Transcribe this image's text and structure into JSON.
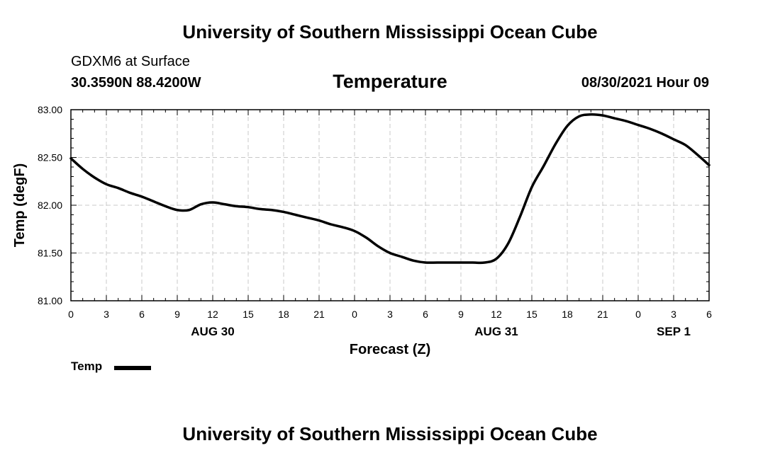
{
  "header": {
    "title": "University of Southern Mississippi Ocean Cube",
    "station": "GDXM6 at Surface",
    "coords": "30.3590N  88.4200W",
    "datetime": "08/30/2021 Hour 09"
  },
  "footer": {
    "title": "University of Southern Mississippi Ocean Cube"
  },
  "legend": {
    "label": "Temp"
  },
  "chart_data": {
    "type": "line",
    "title": "Temperature",
    "xlabel": "Forecast (Z)",
    "ylabel": "Temp (degF)",
    "xlim": [
      0,
      54
    ],
    "ylim": [
      81.0,
      83.0
    ],
    "x_ticks": [
      0,
      3,
      6,
      9,
      12,
      15,
      18,
      21,
      24,
      27,
      30,
      33,
      36,
      39,
      42,
      45,
      48,
      51,
      54
    ],
    "x_tick_labels": [
      "0",
      "3",
      "6",
      "9",
      "12",
      "15",
      "18",
      "21",
      "0",
      "3",
      "6",
      "9",
      "12",
      "15",
      "18",
      "21",
      "0",
      "3",
      "6"
    ],
    "y_ticks": [
      81.0,
      81.5,
      82.0,
      82.5,
      83.0
    ],
    "y_tick_labels": [
      "81.00",
      "81.50",
      "82.00",
      "82.50",
      "83.00"
    ],
    "date_labels": [
      {
        "x": 12,
        "label": "AUG 30"
      },
      {
        "x": 36,
        "label": "AUG 31"
      },
      {
        "x": 51,
        "label": "SEP 1"
      }
    ],
    "grid": true,
    "legend_position": "bottom-left",
    "series": [
      {
        "name": "Temp",
        "color": "#000000",
        "x": [
          0,
          1,
          2,
          3,
          4,
          5,
          6,
          7,
          8,
          9,
          10,
          11,
          12,
          13,
          14,
          15,
          16,
          17,
          18,
          19,
          20,
          21,
          22,
          23,
          24,
          25,
          26,
          27,
          28,
          29,
          30,
          31,
          32,
          33,
          34,
          35,
          36,
          37,
          38,
          39,
          40,
          41,
          42,
          43,
          44,
          45,
          46,
          47,
          48,
          49,
          50,
          51,
          52,
          53,
          54
        ],
        "values": [
          82.49,
          82.38,
          82.29,
          82.22,
          82.18,
          82.13,
          82.09,
          82.04,
          81.99,
          81.95,
          81.95,
          82.01,
          82.03,
          82.01,
          81.99,
          81.98,
          81.96,
          81.95,
          81.93,
          81.9,
          81.87,
          81.84,
          81.8,
          81.77,
          81.73,
          81.66,
          81.57,
          81.5,
          81.46,
          81.42,
          81.4,
          81.4,
          81.4,
          81.4,
          81.4,
          81.4,
          81.44,
          81.6,
          81.88,
          82.19,
          82.41,
          82.64,
          82.83,
          82.93,
          82.95,
          82.94,
          82.91,
          82.88,
          82.84,
          82.8,
          82.75,
          82.69,
          82.63,
          82.53,
          82.42
        ]
      }
    ]
  }
}
